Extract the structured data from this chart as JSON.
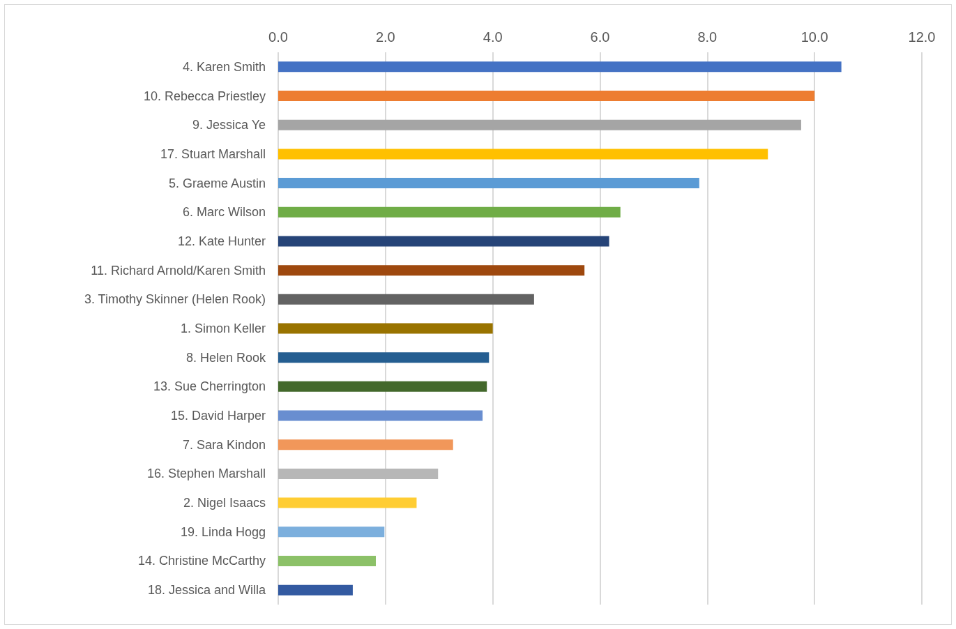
{
  "chart_data": {
    "type": "bar",
    "orientation": "horizontal",
    "categories": [
      "4. Karen Smith",
      "10. Rebecca Priestley",
      "9. Jessica Ye",
      "17. Stuart Marshall",
      "5. Graeme Austin",
      "6. Marc Wilson",
      "12. Kate Hunter",
      "11. Richard Arnold/Karen Smith",
      "3. Timothy Skinner (Helen Rook)",
      "1. Simon Keller",
      "8. Helen Rook",
      "13. Sue Cherrington",
      "15. David Harper",
      "7. Sara Kindon",
      "16. Stephen Marshall",
      "2. Nigel Isaacs",
      "19. Linda Hogg",
      "14. Christine McCarthy",
      "18. Jessica and Willa"
    ],
    "values": [
      10.5,
      10.0,
      9.75,
      9.13,
      7.85,
      6.38,
      6.17,
      5.71,
      4.77,
      4.0,
      3.93,
      3.89,
      3.81,
      3.26,
      2.98,
      2.58,
      1.98,
      1.82,
      1.39
    ],
    "colors": [
      "#4472c4",
      "#ed7d31",
      "#a5a5a5",
      "#ffc000",
      "#5b9bd5",
      "#70ad47",
      "#264478",
      "#9e480e",
      "#636363",
      "#997300",
      "#255e91",
      "#43682b",
      "#698ed0",
      "#f1975a",
      "#b7b7b7",
      "#ffcd33",
      "#7cafdd",
      "#8cc168",
      "#335aa1"
    ],
    "xlim": [
      0,
      12
    ],
    "xticks": [
      {
        "value": 0,
        "label": "0.0"
      },
      {
        "value": 2,
        "label": "2.0"
      },
      {
        "value": 4,
        "label": "4.0"
      },
      {
        "value": 6,
        "label": "6.0"
      },
      {
        "value": 8,
        "label": "8.0"
      },
      {
        "value": 10,
        "label": "10.0"
      },
      {
        "value": 12,
        "label": "12.0"
      }
    ],
    "grid": "x"
  }
}
